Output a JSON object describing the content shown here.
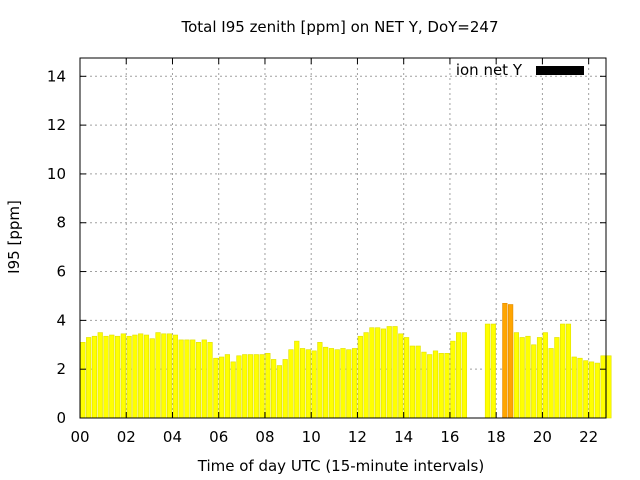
{
  "chart_data": {
    "type": "bar",
    "title": "Total I95 zenith [ppm] on NET Y, DoY=247",
    "xlabel": "Time of day UTC (15-minute intervals)",
    "ylabel": "I95 [ppm]",
    "xlim": [
      0,
      22.75
    ],
    "ylim": [
      0,
      14.75
    ],
    "x_ticks": [
      0,
      2,
      4,
      6,
      8,
      10,
      12,
      14,
      16,
      18,
      20,
      22
    ],
    "x_tick_labels": [
      "00",
      "02",
      "04",
      "06",
      "08",
      "10",
      "12",
      "14",
      "16",
      "18",
      "20",
      "22"
    ],
    "y_ticks": [
      0,
      2,
      4,
      6,
      8,
      10,
      12,
      14
    ],
    "y_tick_labels": [
      "0",
      "2",
      "4",
      "6",
      "8",
      "10",
      "12",
      "14"
    ],
    "grid": true,
    "legend": {
      "label": "ion net Y",
      "placement": "top-right",
      "color": "#000000"
    },
    "bar_width_hours": 0.25,
    "colors": {
      "normal": "#ffff00",
      "elevated": "#ffa500",
      "edge": "#e0e000",
      "elevated_edge": "#e08a00"
    },
    "elevated_threshold": 4.5,
    "values": [
      3.1,
      3.3,
      3.35,
      3.5,
      3.35,
      3.4,
      3.35,
      3.45,
      3.35,
      3.4,
      3.45,
      3.4,
      3.25,
      3.5,
      3.45,
      3.45,
      3.4,
      3.2,
      3.2,
      3.2,
      3.1,
      3.2,
      3.1,
      2.45,
      2.5,
      2.6,
      2.3,
      2.55,
      2.6,
      2.6,
      2.6,
      2.6,
      2.65,
      2.4,
      2.15,
      2.4,
      2.8,
      3.15,
      2.85,
      2.8,
      2.75,
      3.1,
      2.9,
      2.85,
      2.8,
      2.85,
      2.8,
      2.85,
      3.35,
      3.5,
      3.7,
      3.7,
      3.65,
      3.75,
      3.75,
      3.45,
      3.3,
      2.95,
      2.95,
      2.7,
      2.6,
      2.75,
      2.65,
      2.65,
      3.15,
      3.5,
      3.5,
      0,
      0,
      0,
      3.85,
      3.85,
      0,
      4.7,
      4.65,
      3.5,
      3.3,
      3.35,
      3.0,
      3.3,
      3.5,
      2.85,
      3.3,
      3.85,
      3.85,
      2.5,
      2.45,
      2.35,
      2.3,
      2.25,
      2.55,
      2.55
    ]
  }
}
